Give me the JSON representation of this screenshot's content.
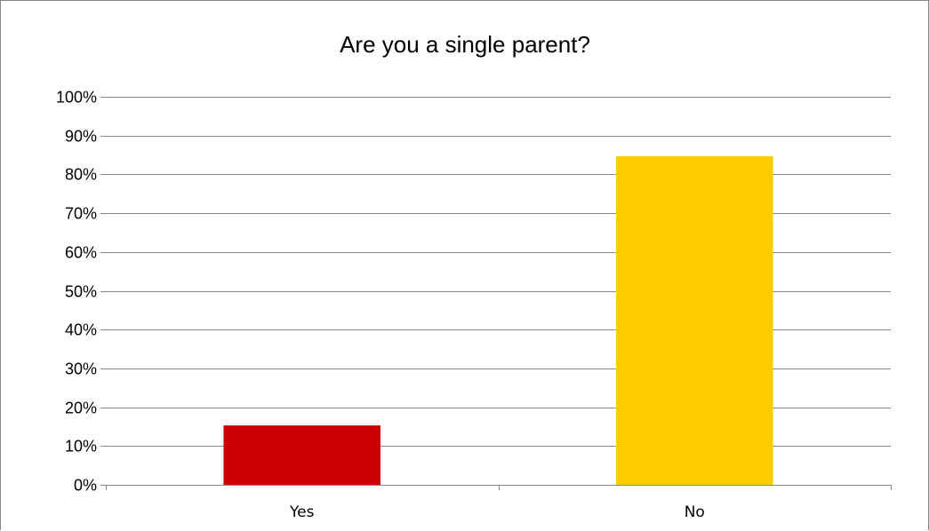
{
  "chart_data": {
    "type": "bar",
    "title": "Are you a single parent?",
    "categories": [
      "Yes",
      "No"
    ],
    "values": [
      15.3,
      84.7
    ],
    "colors": [
      "#CC0000",
      "#FFCC00"
    ],
    "ylim": [
      0,
      100
    ],
    "yticks": [
      0,
      10,
      20,
      30,
      40,
      50,
      60,
      70,
      80,
      90,
      100
    ],
    "ytick_labels": [
      "0%",
      "10%",
      "20%",
      "30%",
      "40%",
      "50%",
      "60%",
      "70%",
      "80%",
      "90%",
      "100%"
    ],
    "xlabel": "",
    "ylabel": "",
    "grid": true,
    "legend": "none"
  }
}
